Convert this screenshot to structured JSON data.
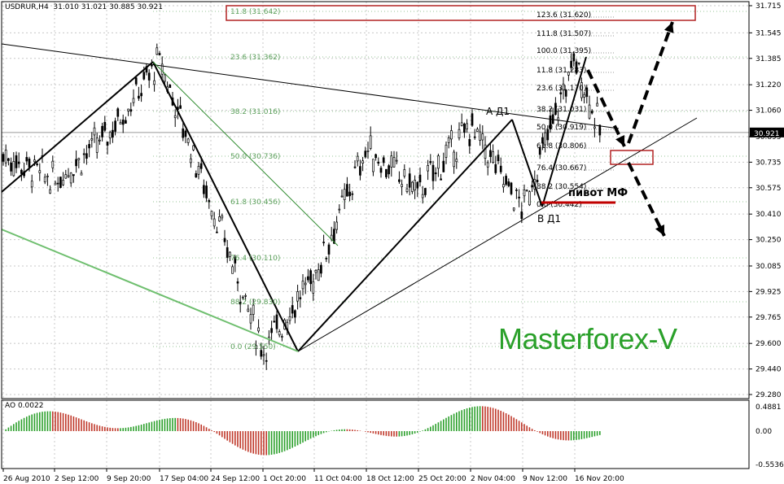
{
  "header": {
    "symbol": "USDRUR,H4",
    "ohlc": "31.010 31.021 30.885 30.921"
  },
  "ao": {
    "label": "AO 0.0022",
    "axis_labels": [
      "0.4881",
      "0.00",
      "-0.5536"
    ]
  },
  "watermark": "Masterforex-V",
  "annotations": {
    "pivot": "пивот МФ",
    "point_a": "А Д1",
    "point_b": "В Д1"
  },
  "colors": {
    "fib_text": "#5da05d",
    "fib_line": "#2e8b2e",
    "box": "#b22222",
    "ao_up": "#2ca02c",
    "ao_down": "#c0392b",
    "grid": "#c8c8c8",
    "watermark": "#2aa02a"
  },
  "chart_data": {
    "type": "candlestick",
    "symbol": "USDRUR",
    "timeframe": "H4",
    "current_price": 30.921,
    "ylim": [
      29.28,
      31.715
    ],
    "price_axis_labels": [
      "31.715",
      "31.545",
      "31.385",
      "31.220",
      "31.060",
      "30.895",
      "30.735",
      "30.575",
      "30.410",
      "30.250",
      "30.085",
      "29.925",
      "29.765",
      "29.600",
      "29.440",
      "29.280"
    ],
    "time_axis_labels": [
      "26 Aug 2010",
      "2 Sep 12:00",
      "9 Sep 20:00",
      "17 Sep 04:00",
      "24 Sep 12:00",
      "1 Oct 20:00",
      "11 Oct 04:00",
      "18 Oct 12:00",
      "25 Oct 20:00",
      "2 Nov 04:00",
      "9 Nov 12:00",
      "16 Nov 20:00"
    ],
    "approx_close_path": [
      {
        "t": "26 Aug 2010",
        "p": 30.78
      },
      {
        "t": "2 Sep 12:00",
        "p": 30.62
      },
      {
        "t": "9 Sep 20:00",
        "p": 30.9
      },
      {
        "t": "17 Sep 04:00",
        "p": 31.37
      },
      {
        "t": "24 Sep 12:00",
        "p": 30.48
      },
      {
        "t": "1 Oct 20:00",
        "p": 29.56
      },
      {
        "t": "11 Oct 04:00",
        "p": 30.02
      },
      {
        "t": "18 Oct 12:00",
        "p": 30.82
      },
      {
        "t": "25 Oct 20:00",
        "p": 30.55
      },
      {
        "t": "2 Nov 04:00",
        "p": 30.96
      },
      {
        "t": "9 Nov 12:00",
        "p": 30.44
      },
      {
        "t": "16 Nov 20:00",
        "p": 31.38
      },
      {
        "t": "16 Nov 20:00",
        "p": 30.921
      }
    ],
    "fib_levels_major": [
      {
        "label": "11.8 (31.642)"
      },
      {
        "label": "23.6 (31.362)"
      },
      {
        "label": "38.2 (31.016)"
      },
      {
        "label": "50.0 (30.736)"
      },
      {
        "label": "61.8 (30.456)"
      },
      {
        "label": "76.4 (30.110)"
      },
      {
        "label": "88.2 (29.830)"
      },
      {
        "label": "0.0 (29.550)"
      }
    ],
    "fib_levels_minor": [
      {
        "label": "123.6 (31.620)"
      },
      {
        "label": "111.8 (31.507)"
      },
      {
        "label": "100.0 (31.395)"
      },
      {
        "label": "11.8 (31.283)"
      },
      {
        "label": "23.6 (31.170)"
      },
      {
        "label": "38.2 (31.031)"
      },
      {
        "label": "50.0 (30.919)"
      },
      {
        "label": "61.8 (30.806)"
      },
      {
        "label": "76.4 (30.667)"
      },
      {
        "label": "88.2 (30.554)"
      },
      {
        "label": "0.0 (30.442)"
      }
    ]
  }
}
